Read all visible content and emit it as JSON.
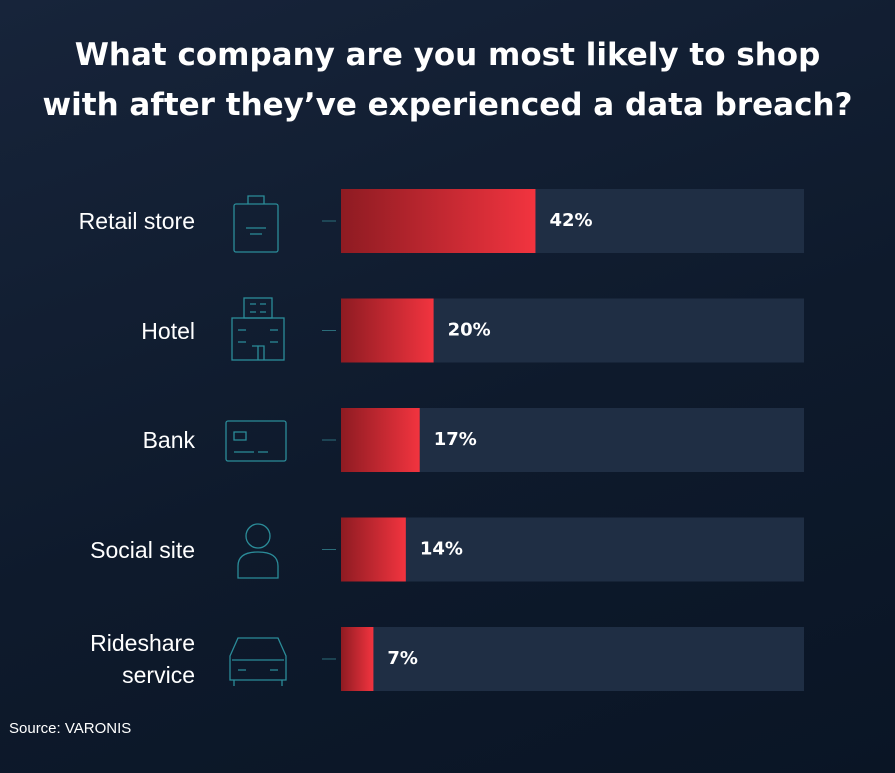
{
  "chart_data": {
    "type": "barh",
    "title": "What company are you most likely to shop\nwith after they’ve experienced a data breach?",
    "categories": [
      "Retail store",
      "Hotel",
      "Bank",
      "Social site",
      "Rideshare service"
    ],
    "values": [
      42,
      20,
      17,
      14,
      7
    ],
    "value_labels": [
      "42%",
      "20%",
      "17%",
      "14%",
      "7%"
    ],
    "xlim": [
      0,
      100
    ],
    "color": "#ef3340",
    "source": "Source: VARONIS"
  }
}
